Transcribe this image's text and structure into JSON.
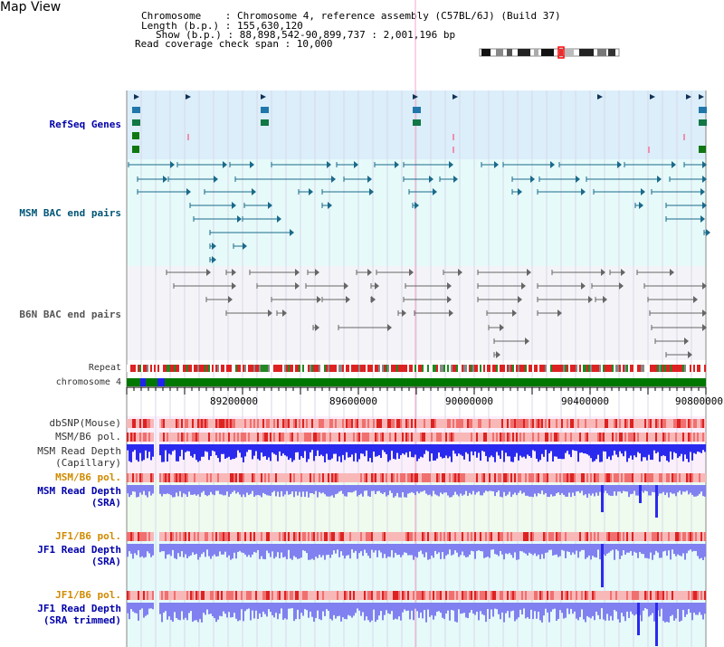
{
  "view": {
    "title": "Map View"
  },
  "header": {
    "chromosome_line": "Chromosome    : Chromosome 4, reference assembly (C57BL/6J) (Build 37)",
    "length_line": "Length (b.p.) : 155,630,120",
    "show_line": "Show (b.p.) : 88,898,542-90,899,737 : 2,001,196 bp",
    "span_line": "Read coverage check span : 10,000"
  },
  "tracks": {
    "refseq": "RefSeq Genes",
    "msm_bac": "MSM BAC end pairs",
    "b6n_bac": "B6N BAC end pairs",
    "repeat": "Repeat",
    "chromosome": "chromosome 4",
    "dbsnp": "dbSNP(Mouse)",
    "msm_b6_pol_1": "MSM/B6 pol.",
    "msm_read_depth_cap_1": "MSM Read Depth",
    "msm_read_depth_cap_2": "(Capillary)",
    "msm_b6_pol_2": "MSM/B6 pol.",
    "msm_read_depth_sra_1": "MSM Read Depth",
    "msm_read_depth_sra_2": "(SRA)",
    "jf1_b6_pol_1": "JF1/B6 pol.",
    "jf1_read_depth_sra_1": "JF1 Read Depth",
    "jf1_read_depth_sra_2": "(SRA)",
    "jf1_b6_pol_2": "JF1/B6 pol.",
    "jf1_read_depth_trim_1": "JF1 Read Depth",
    "jf1_read_depth_trim_2": "(SRA trimmed)"
  },
  "axis": {
    "ticks": [
      "89200000",
      "89600000",
      "90000000",
      "90400000",
      "90800000"
    ]
  },
  "colors": {
    "refseq_bg": "#dbeefa",
    "bac_bg": "#e6fafa",
    "b6n_bg": "#f4f4f8",
    "chromosome_green": "#007700",
    "depth_blue": "#2a2aee",
    "sra_blue": "#8080f0",
    "pol_red": "#f08080",
    "label_blue": "#0000aa",
    "label_orange": "#d08a00"
  }
}
